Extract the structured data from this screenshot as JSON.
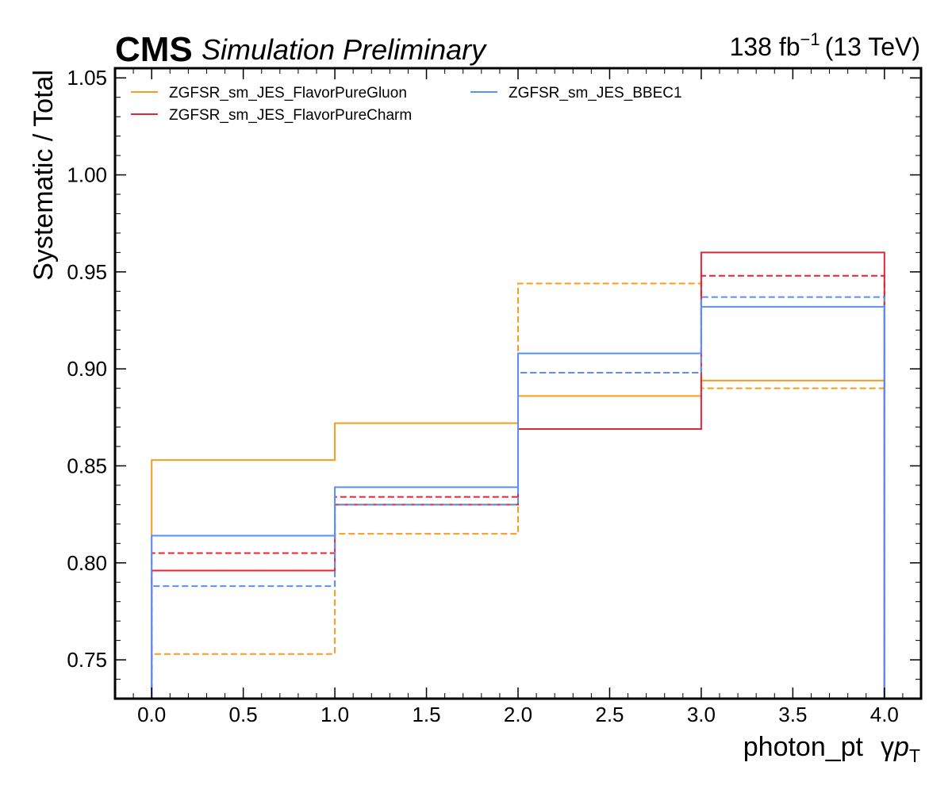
{
  "chart_data": {
    "type": "line",
    "experiment": "CMS",
    "status": "Simulation Preliminary",
    "lumi": {
      "value": "138 fb",
      "exponent": "−1",
      "energy": "(13 TeV)"
    },
    "xlabel": "photon_pt",
    "xlabel_symbol": {
      "prefix": "γ",
      "var": "p",
      "sub": "T"
    },
    "ylabel": "Systematic / Total",
    "xlim": [
      -0.2,
      4.2
    ],
    "ylim": [
      0.73,
      1.055
    ],
    "x_ticks": [
      0.0,
      0.5,
      1.0,
      1.5,
      2.0,
      2.5,
      3.0,
      3.5,
      4.0
    ],
    "x_tick_labels": [
      "0.0",
      "0.5",
      "1.0",
      "1.5",
      "2.0",
      "2.5",
      "3.0",
      "3.5",
      "4.0"
    ],
    "y_ticks": [
      0.75,
      0.8,
      0.85,
      0.9,
      0.95,
      1.0,
      1.05
    ],
    "y_tick_labels": [
      "0.75",
      "0.80",
      "0.85",
      "0.90",
      "0.95",
      "1.00",
      "1.05"
    ],
    "bin_edges": [
      0,
      1,
      2,
      3,
      4
    ],
    "legend_position": "top-left",
    "grid": false,
    "series": [
      {
        "name": "ZGFSR_sm_JES_FlavorPureGluon",
        "color": "#f89c20",
        "up": [
          0.853,
          0.872,
          0.886,
          0.894
        ],
        "down": [
          0.753,
          0.815,
          0.944,
          0.89
        ]
      },
      {
        "name": "ZGFSR_sm_JES_FlavorPureCharm",
        "color": "#e42536",
        "up": [
          0.796,
          0.83,
          0.869,
          0.96
        ],
        "down": [
          0.805,
          0.834,
          0.898,
          0.948
        ]
      },
      {
        "name": "ZGFSR_sm_JES_BBEC1",
        "color": "#5790fc",
        "up": [
          0.814,
          0.839,
          0.908,
          0.932
        ],
        "down": [
          0.788,
          0.83,
          0.898,
          0.937
        ]
      }
    ]
  }
}
